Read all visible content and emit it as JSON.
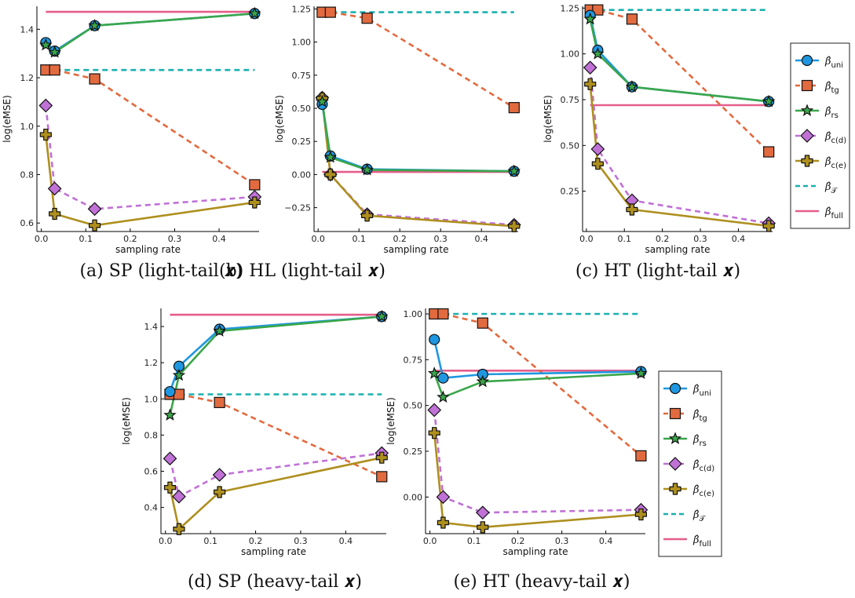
{
  "series_styles": [
    {
      "key": "uni",
      "name": "β̂",
      "sub": "uni",
      "color": "#1f97e0",
      "dash": "",
      "marker": "circle"
    },
    {
      "key": "tg",
      "name": "β̂",
      "sub": "tg",
      "color": "#e26a3f",
      "dash": "7,5",
      "marker": "square"
    },
    {
      "key": "rs",
      "name": "β̂",
      "sub": "rs",
      "color": "#3aa64a",
      "dash": "",
      "marker": "star"
    },
    {
      "key": "cd",
      "name": "β̂",
      "sub": "c(d)",
      "color": "#c071d6",
      "dash": "7,5",
      "marker": "diamond"
    },
    {
      "key": "ce",
      "name": "β̂",
      "sub": "c(e)",
      "color": "#ae8f1e",
      "dash": "",
      "marker": "cross"
    },
    {
      "key": "T",
      "name": "β̂",
      "sub": "𝒯",
      "color": "#1ab0b0",
      "dash": "7,5",
      "marker": "none"
    },
    {
      "key": "full",
      "name": "β̂",
      "sub": "full",
      "color": "#e55e8a",
      "dash": "",
      "marker": "none"
    }
  ],
  "chart_data": [
    {
      "type": "line",
      "caption": "(a) SP (light-tail 𝒙)",
      "xlabel": "sampling rate",
      "ylabel": "log(eMSE)",
      "xlim": [
        -0.01,
        0.49
      ],
      "ylim": [
        0.565,
        1.495
      ],
      "xticks": [
        "0.0",
        "0.1",
        "0.2",
        "0.3",
        "0.4"
      ],
      "yticks": [
        "0.6",
        "0.8",
        "1.0",
        "1.2",
        "1.4"
      ],
      "x": [
        0.01,
        0.03,
        0.12,
        0.48
      ],
      "series": [
        {
          "key": "uni",
          "values": [
            1.345,
            1.31,
            1.415,
            1.465
          ]
        },
        {
          "key": "rs",
          "values": [
            1.335,
            1.305,
            1.415,
            1.465
          ]
        },
        {
          "key": "tg",
          "values": [
            1.232,
            1.232,
            1.195,
            0.758
          ]
        },
        {
          "key": "cd",
          "values": [
            1.085,
            0.742,
            0.658,
            0.708
          ]
        },
        {
          "key": "ce",
          "values": [
            0.965,
            0.638,
            0.59,
            0.685
          ]
        }
      ],
      "hlines": [
        {
          "key": "T",
          "y": 1.232
        },
        {
          "key": "full",
          "y": 1.472
        }
      ],
      "legend": false
    },
    {
      "type": "line",
      "caption": "(b) HL (light-tail 𝒙)",
      "xlabel": "sampling rate",
      "ylabel": "log(eMSE)",
      "xlim": [
        -0.01,
        0.49
      ],
      "ylim": [
        -0.43,
        1.27
      ],
      "xticks": [
        "0.0",
        "0.1",
        "0.2",
        "0.3",
        "0.4"
      ],
      "yticks": [
        "−0.25",
        "0.00",
        "0.25",
        "0.50",
        "0.75",
        "1.00",
        "1.25"
      ],
      "x": [
        0.01,
        0.03,
        0.12,
        0.48
      ],
      "series": [
        {
          "key": "uni",
          "values": [
            0.53,
            0.14,
            0.04,
            0.025
          ]
        },
        {
          "key": "rs",
          "values": [
            0.55,
            0.13,
            0.035,
            0.025
          ]
        },
        {
          "key": "tg",
          "values": [
            1.225,
            1.225,
            1.18,
            0.505
          ]
        },
        {
          "key": "cd",
          "values": [
            0.58,
            0.0,
            -0.3,
            -0.38
          ]
        },
        {
          "key": "ce",
          "values": [
            0.575,
            0.0,
            -0.31,
            -0.39
          ]
        }
      ],
      "hlines": [
        {
          "key": "T",
          "y": 1.225
        },
        {
          "key": "full",
          "y": 0.02
        }
      ],
      "legend": false
    },
    {
      "type": "line",
      "caption": "(c) HT (light-tail 𝒙)",
      "xlabel": "sampling rate",
      "ylabel": "log(eMSE)",
      "xlim": [
        -0.01,
        0.49
      ],
      "ylim": [
        0.03,
        1.26
      ],
      "xticks": [
        "0.0",
        "0.1",
        "0.2",
        "0.3",
        "0.4"
      ],
      "yticks": [
        "0.25",
        "0.50",
        "0.75",
        "1.00",
        "1.25"
      ],
      "x": [
        0.01,
        0.03,
        0.12,
        0.48
      ],
      "series": [
        {
          "key": "uni",
          "values": [
            1.21,
            1.02,
            0.82,
            0.74
          ]
        },
        {
          "key": "rs",
          "values": [
            1.19,
            1.0,
            0.82,
            0.74
          ]
        },
        {
          "key": "tg",
          "values": [
            1.24,
            1.24,
            1.19,
            0.465
          ]
        },
        {
          "key": "cd",
          "values": [
            0.925,
            0.48,
            0.2,
            0.075
          ]
        },
        {
          "key": "ce",
          "values": [
            0.835,
            0.4,
            0.15,
            0.06
          ]
        }
      ],
      "hlines": [
        {
          "key": "T",
          "y": 1.24
        },
        {
          "key": "full",
          "y": 0.72
        }
      ],
      "legend": true
    },
    {
      "type": "line",
      "caption": "(d) SP (heavy-tail 𝒙)",
      "xlabel": "sampling rate",
      "ylabel": "log(eMSE)",
      "xlim": [
        -0.01,
        0.49
      ],
      "ylim": [
        0.255,
        1.5
      ],
      "xticks": [
        "0.0",
        "0.1",
        "0.2",
        "0.3",
        "0.4"
      ],
      "yticks": [
        "0.4",
        "0.6",
        "0.8",
        "1.0",
        "1.2",
        "1.4"
      ],
      "x": [
        0.01,
        0.03,
        0.12,
        0.48
      ],
      "series": [
        {
          "key": "uni",
          "values": [
            1.04,
            1.18,
            1.385,
            1.455
          ]
        },
        {
          "key": "rs",
          "values": [
            0.91,
            1.13,
            1.375,
            1.455
          ]
        },
        {
          "key": "tg",
          "values": [
            1.025,
            1.025,
            0.98,
            0.57
          ]
        },
        {
          "key": "cd",
          "values": [
            0.67,
            0.46,
            0.58,
            0.7
          ]
        },
        {
          "key": "ce",
          "values": [
            0.51,
            0.28,
            0.485,
            0.675
          ]
        }
      ],
      "hlines": [
        {
          "key": "T",
          "y": 1.025
        },
        {
          "key": "full",
          "y": 1.465
        }
      ],
      "legend": false
    },
    {
      "type": "line",
      "caption": "(e) HT (heavy-tail 𝒙)",
      "xlabel": "sampling rate",
      "ylabel": "log(eMSE)",
      "xlim": [
        -0.01,
        0.49
      ],
      "ylim": [
        -0.2,
        1.03
      ],
      "xticks": [
        "0.0",
        "0.1",
        "0.2",
        "0.3",
        "0.4"
      ],
      "yticks": [
        "0.00",
        "0.25",
        "0.50",
        "0.75",
        "1.00"
      ],
      "x": [
        0.01,
        0.03,
        0.12,
        0.48
      ],
      "series": [
        {
          "key": "uni",
          "values": [
            0.86,
            0.65,
            0.67,
            0.685
          ]
        },
        {
          "key": "rs",
          "values": [
            0.675,
            0.545,
            0.63,
            0.675
          ]
        },
        {
          "key": "tg",
          "values": [
            1.0,
            1.0,
            0.95,
            0.225
          ]
        },
        {
          "key": "cd",
          "values": [
            0.475,
            0.0,
            -0.085,
            -0.07
          ]
        },
        {
          "key": "ce",
          "values": [
            0.35,
            -0.14,
            -0.165,
            -0.095
          ]
        }
      ],
      "hlines": [
        {
          "key": "T",
          "y": 1.0
        },
        {
          "key": "full",
          "y": 0.69
        }
      ],
      "legend": true
    }
  ]
}
